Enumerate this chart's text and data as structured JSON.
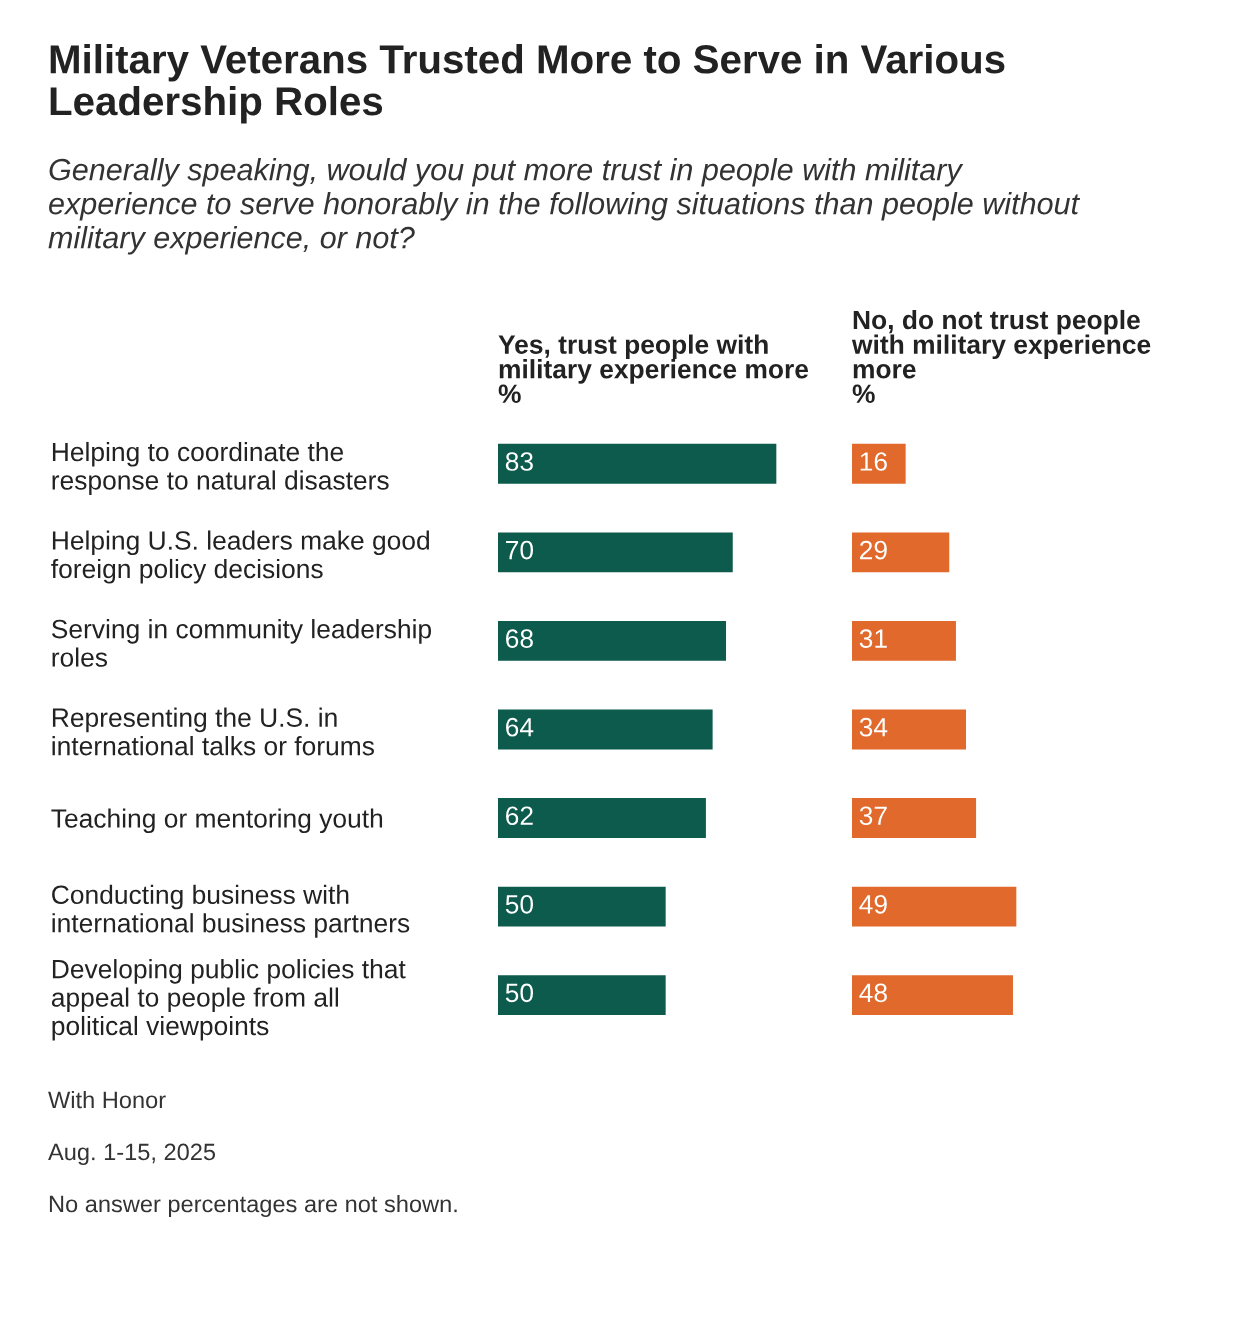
{
  "chart_data": [
    {
      "type": "bar",
      "orientation": "horizontal",
      "title": "Military Veterans Trusted More to Serve in Various Leadership Roles",
      "subtitle": "Generally speaking, would you put more trust in people with military experience to serve honorably in the following situations than people without military experience, or not?",
      "xlabel": "Yes, trust people with military experience more %",
      "categories": [
        "Helping to coordinate the response to natural disasters",
        "Helping U.S. leaders make good foreign policy decisions",
        "Serving in community leadership roles",
        "Representing the U.S. in international talks or forums",
        "Teaching or mentoring youth",
        "Conducting business with international business partners",
        "Developing public policies that appeal to people from all political viewpoints"
      ],
      "series": [
        {
          "color": "#0d5b4d",
          "values": [
            83,
            70,
            68,
            64,
            62,
            50,
            50
          ]
        }
      ],
      "data_labels": true,
      "tick_labels": "y",
      "annotations": [
        "With Honor",
        "Aug. 1-15, 2025",
        "No answer percentages are not shown."
      ]
    },
    {
      "type": "bar",
      "orientation": "horizontal",
      "xlabel": "No, do not trust people with military experience more %",
      "categories": [
        null,
        null,
        null,
        null,
        null,
        null,
        null
      ],
      "series": [
        {
          "color": "#e0692b",
          "values": [
            16,
            29,
            31,
            34,
            37,
            49,
            48
          ]
        }
      ],
      "data_labels": true,
      "tick_labels": false
    }
  ]
}
